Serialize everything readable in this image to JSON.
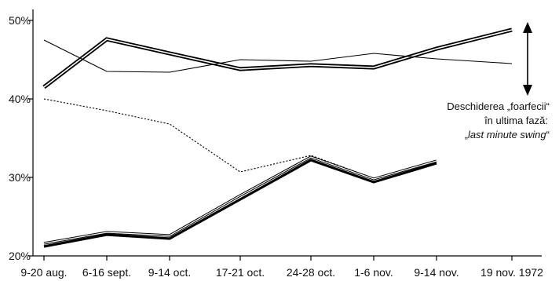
{
  "chart_data": {
    "type": "line",
    "title": "",
    "xlabel": "",
    "ylabel": "",
    "categories": [
      "9-20 aug.",
      "6-16 sept.",
      "9-14 oct.",
      "17-21 oct.",
      "24-28 oct.",
      "1-6 nov.",
      "9-14 nov.",
      "19 nov. 1972"
    ],
    "ylim": [
      20,
      51
    ],
    "y_ticks": [
      20,
      30,
      40,
      50
    ],
    "y_tick_labels": [
      "20%",
      "30%",
      "40%",
      "50%"
    ],
    "grid": false,
    "legend": "none",
    "series": [
      {
        "style": "double-thick",
        "values": [
          41.5,
          47.6,
          45.8,
          43.8,
          44.3,
          44.0,
          46.4,
          48.8
        ]
      },
      {
        "style": "thin",
        "values": [
          47.5,
          43.5,
          43.4,
          45.0,
          44.8,
          45.8,
          45.1,
          44.5
        ]
      },
      {
        "style": "dotted",
        "values": [
          40.0,
          38.5,
          36.8,
          30.7,
          32.8,
          29.9,
          32.2,
          null
        ]
      },
      {
        "style": "thin-double",
        "values": [
          21.6,
          23.0,
          22.6,
          27.7,
          32.6,
          29.8,
          32.1,
          null
        ]
      },
      {
        "style": "thick",
        "values": [
          21.2,
          22.7,
          22.2,
          27.2,
          32.2,
          29.4,
          31.8,
          null
        ]
      }
    ],
    "annotation": {
      "line1": "Deschiderea „foarfecii“",
      "line2": "în ultima fază:",
      "line3_open": "„",
      "line3_italic": "last minute swing",
      "line3_close": "“"
    }
  }
}
